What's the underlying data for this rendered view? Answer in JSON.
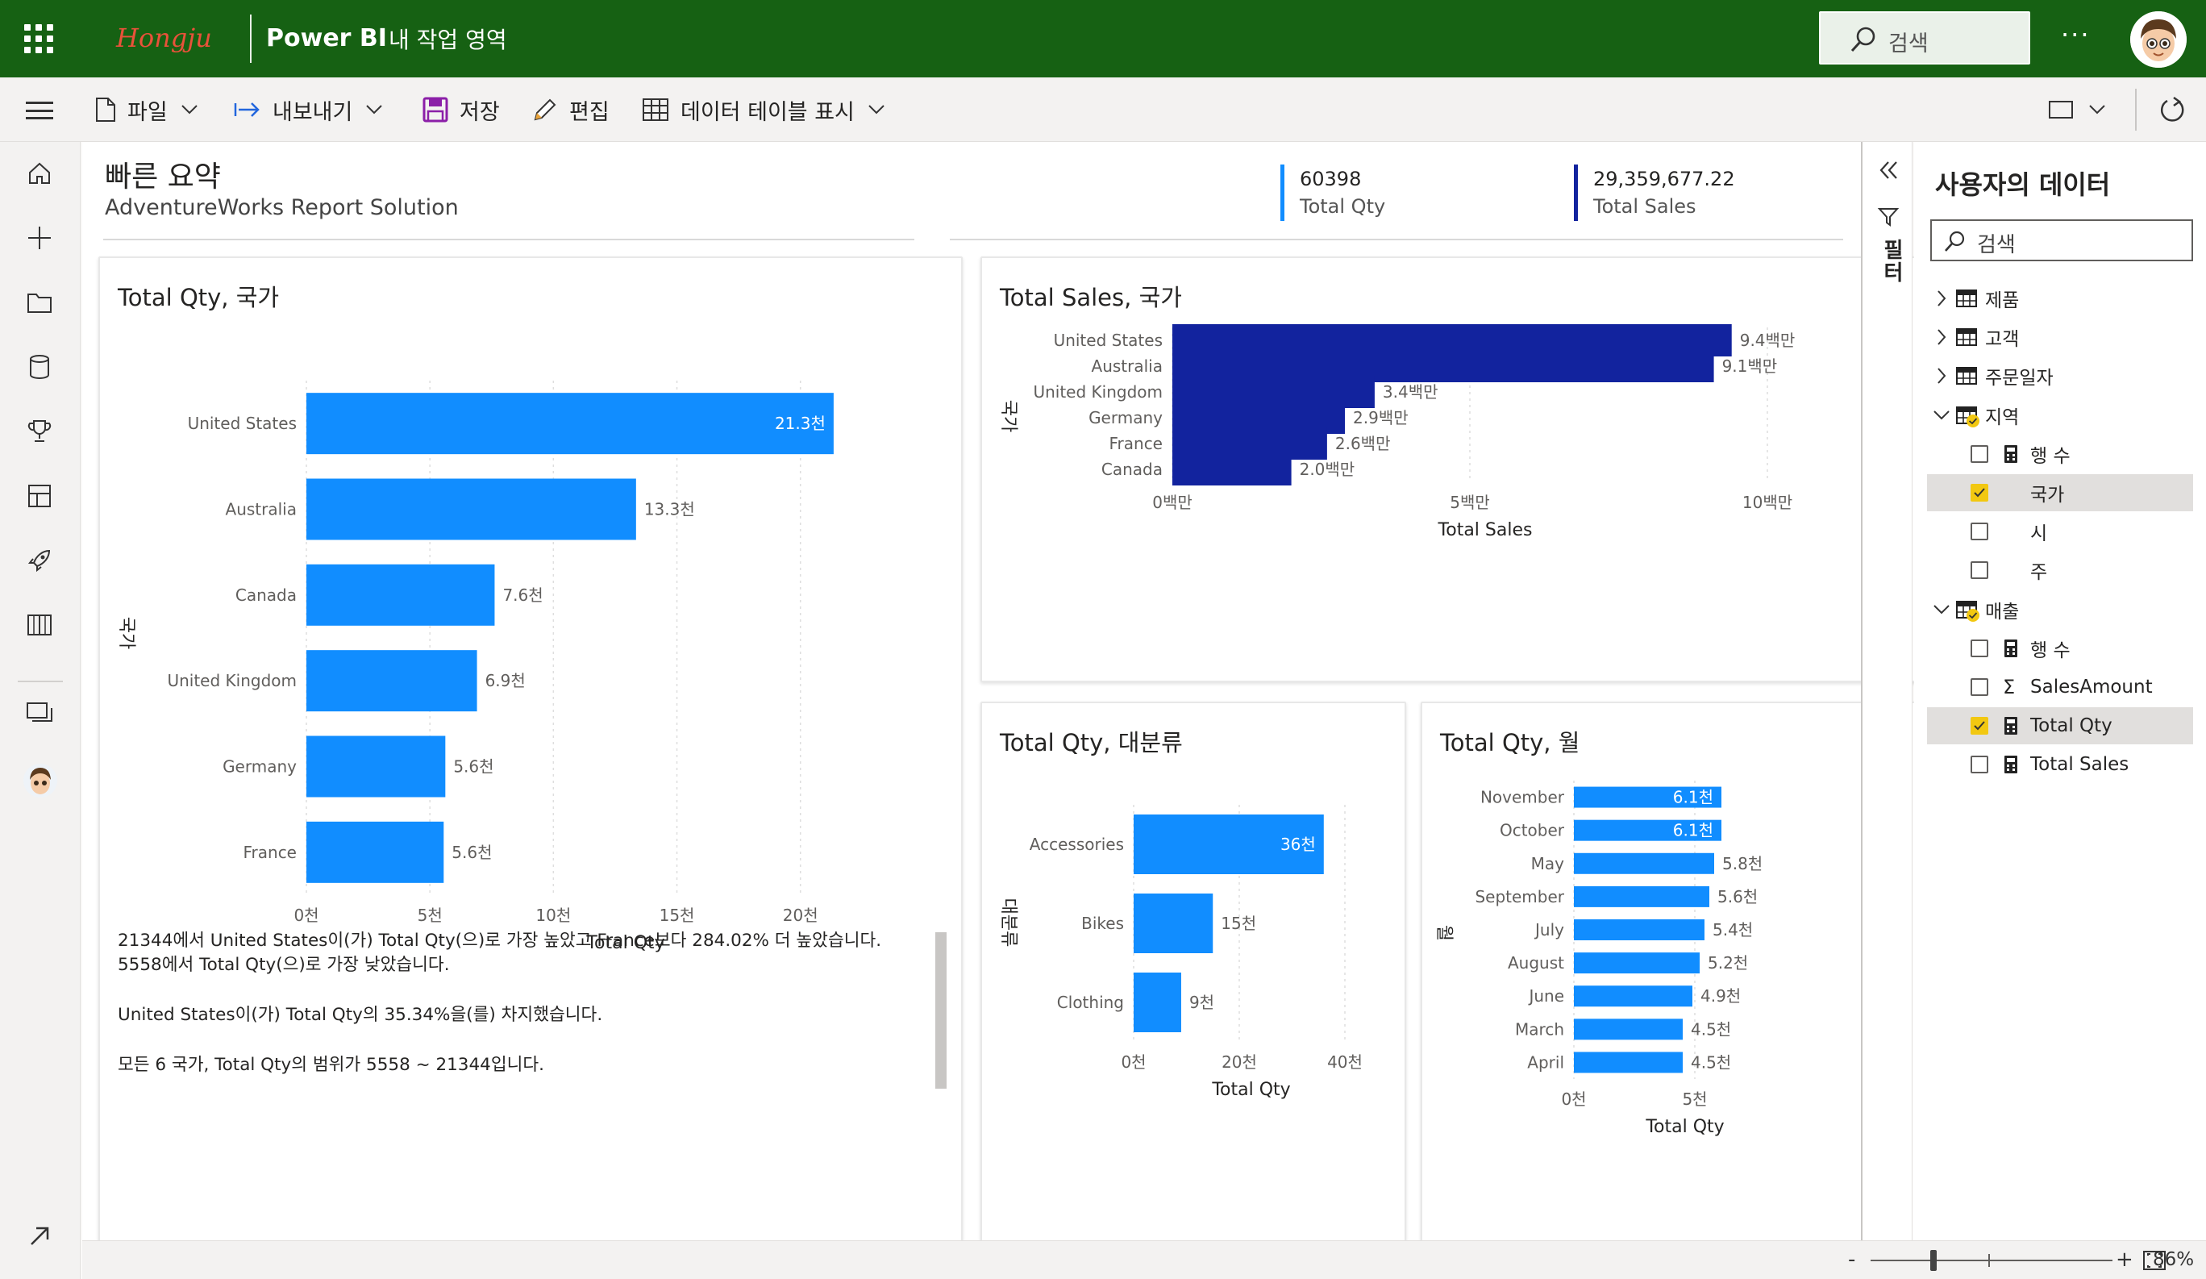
{
  "topbar": {
    "brand": "Hongju",
    "app_name": "Power BI",
    "workspace": "내 작업 영역",
    "search_placeholder": "검색",
    "more": "···"
  },
  "commandbar": {
    "file": "파일",
    "export": "내보내기",
    "save": "저장",
    "edit": "편집",
    "show_table": "데이터 테이블 표시"
  },
  "report": {
    "title": "빠른 요약",
    "subtitle": "AdventureWorks Report Solution",
    "kpis": [
      {
        "value": "60398",
        "label": "Total Qty"
      },
      {
        "value": "29,359,677.22",
        "label": "Total Sales"
      }
    ]
  },
  "insights": {
    "line1": "21344에서 United States이(가) Total Qty(으)로 가장 높았고 France보다 284.02% 더 높았습니다.",
    "line2": "5558에서 Total Qty(으)로 가장 낮았습니다.",
    "line3": "United States이(가) Total Qty의 35.34%을(를) 차지했습니다.",
    "line4": "모든 6 국가, Total Qty의 범위가 5558 ~ 21344입니다."
  },
  "chart_data": [
    {
      "type": "bar",
      "orientation": "horizontal",
      "title": "Total Qty, 국가",
      "xlabel": "Total Qty",
      "ylabel": "국가",
      "categories": [
        "United States",
        "Australia",
        "Canada",
        "United Kingdom",
        "Germany",
        "France"
      ],
      "values": [
        21344,
        13345,
        7620,
        6906,
        5625,
        5558
      ],
      "data_labels": [
        "21.3천",
        "13.3천",
        "7.6천",
        "6.9천",
        "5.6천",
        "5.6천"
      ],
      "xlim": [
        0,
        22000
      ],
      "ticks": [
        0,
        5000,
        10000,
        15000,
        20000
      ],
      "tick_labels": [
        "0천",
        "5천",
        "10천",
        "15천",
        "20천"
      ],
      "color": "#118dff"
    },
    {
      "type": "bar",
      "orientation": "horizontal",
      "title": "Total Sales, 국가",
      "xlabel": "Total Sales",
      "ylabel": "국가",
      "categories": [
        "United States",
        "Australia",
        "United Kingdom",
        "Germany",
        "France",
        "Canada"
      ],
      "values": [
        9400000,
        9100000,
        3400000,
        2900000,
        2600000,
        2000000
      ],
      "data_labels": [
        "9.4백만",
        "9.1백만",
        "3.4백만",
        "2.9백만",
        "2.6백만",
        "2.0백만"
      ],
      "xlim": [
        0,
        10000000
      ],
      "ticks": [
        0,
        5000000,
        10000000
      ],
      "tick_labels": [
        "0백만",
        "5백만",
        "10백만"
      ],
      "color": "#12239e"
    },
    {
      "type": "bar",
      "orientation": "horizontal",
      "title": "Total Qty, 대분류",
      "xlabel": "Total Qty",
      "ylabel": "대분류",
      "categories": [
        "Accessories",
        "Bikes",
        "Clothing"
      ],
      "values": [
        36000,
        15000,
        9000
      ],
      "data_labels": [
        "36천",
        "15천",
        "9천"
      ],
      "xlim": [
        0,
        40000
      ],
      "ticks": [
        0,
        20000,
        40000
      ],
      "tick_labels": [
        "0천",
        "20천",
        "40천"
      ],
      "color": "#118dff"
    },
    {
      "type": "bar",
      "orientation": "horizontal",
      "title": "Total Qty, 월",
      "xlabel": "Total Qty",
      "ylabel": "월",
      "categories": [
        "November",
        "October",
        "May",
        "September",
        "July",
        "August",
        "June",
        "March",
        "April"
      ],
      "values": [
        6100,
        6100,
        5800,
        5600,
        5400,
        5200,
        4900,
        4500,
        4500
      ],
      "data_labels": [
        "6.1천",
        "6.1천",
        "5.8천",
        "5.6천",
        "5.4천",
        "5.2천",
        "4.9천",
        "4.5천",
        "4.5천"
      ],
      "xlim": [
        0,
        6000
      ],
      "ticks": [
        0,
        5000
      ],
      "tick_labels": [
        "0천",
        "5천"
      ],
      "color": "#118dff"
    }
  ],
  "filter_pane": {
    "label": "필터"
  },
  "data_pane": {
    "title": "사용자의 데이터",
    "search_placeholder": "검색",
    "items": [
      {
        "label": "제품",
        "kind": "table",
        "state": "collapsed"
      },
      {
        "label": "고객",
        "kind": "table",
        "state": "collapsed"
      },
      {
        "label": "주문일자",
        "kind": "table",
        "state": "collapsed"
      },
      {
        "label": "지역",
        "kind": "table",
        "state": "expanded",
        "has_selection": true
      },
      {
        "label": "행 수",
        "kind": "measure",
        "checked": false
      },
      {
        "label": "국가",
        "kind": "field",
        "checked": true
      },
      {
        "label": "시",
        "kind": "field",
        "checked": false
      },
      {
        "label": "주",
        "kind": "field",
        "checked": false
      },
      {
        "label": "매출",
        "kind": "table",
        "state": "expanded",
        "has_selection": true
      },
      {
        "label": "행 수",
        "kind": "measure",
        "checked": false
      },
      {
        "label": "SalesAmount",
        "kind": "sum",
        "checked": false
      },
      {
        "label": "Total Qty",
        "kind": "measure",
        "checked": true
      },
      {
        "label": "Total Sales",
        "kind": "measure",
        "checked": false
      }
    ]
  },
  "statusbar": {
    "zoom": "86%",
    "minus": "-",
    "plus": "+"
  }
}
